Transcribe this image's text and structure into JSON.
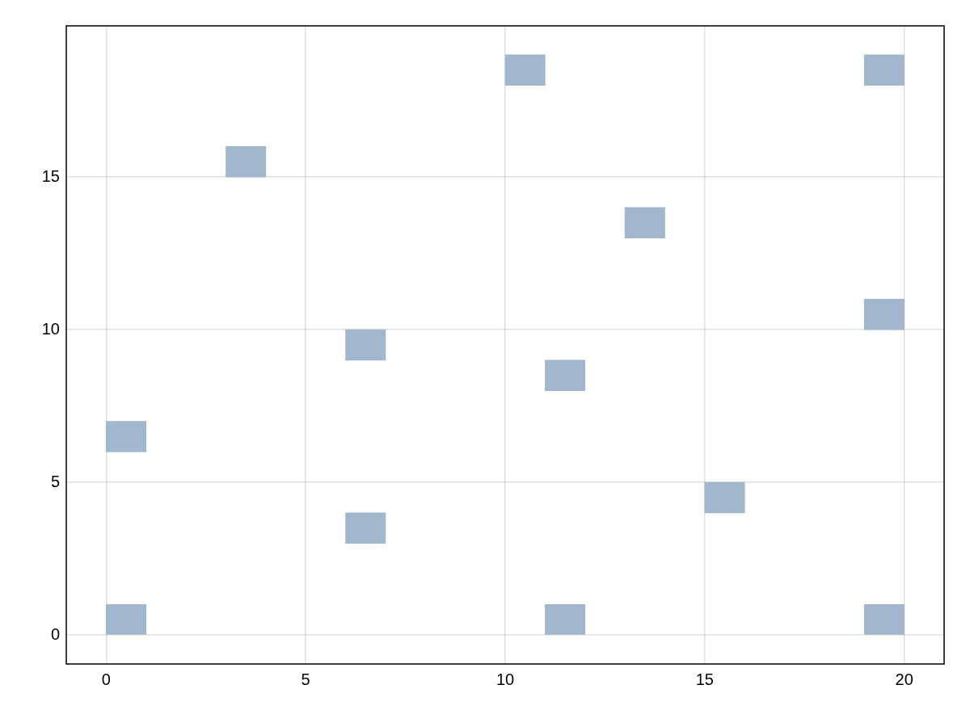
{
  "chart_data": {
    "type": "bar",
    "series": [
      {
        "color": "#a2b6cd",
        "x": [
          0.5,
          3.5,
          6.5,
          10.5,
          11.5,
          13.5,
          15.5,
          19.5
        ],
        "base": [
          0,
          15,
          3,
          18,
          0,
          13,
          4,
          0
        ],
        "values": [
          1,
          1,
          1,
          1,
          1,
          1,
          1,
          1
        ]
      },
      {
        "color": "#a2b6cd",
        "x": [
          0.5,
          6.5,
          11.5,
          19.5
        ],
        "base": [
          6,
          9,
          8,
          10
        ],
        "values": [
          1,
          1,
          1,
          1
        ]
      },
      {
        "color": "#a2b6cd",
        "x": [
          19.5
        ],
        "base": [
          18
        ],
        "values": [
          1
        ]
      }
    ],
    "xlim": [
      -1,
      21
    ],
    "ylim": [
      -0.95,
      19.95
    ],
    "xticks": [
      0,
      5,
      10,
      15,
      20
    ],
    "yticks": [
      0,
      5,
      10,
      15
    ],
    "grid": true
  }
}
